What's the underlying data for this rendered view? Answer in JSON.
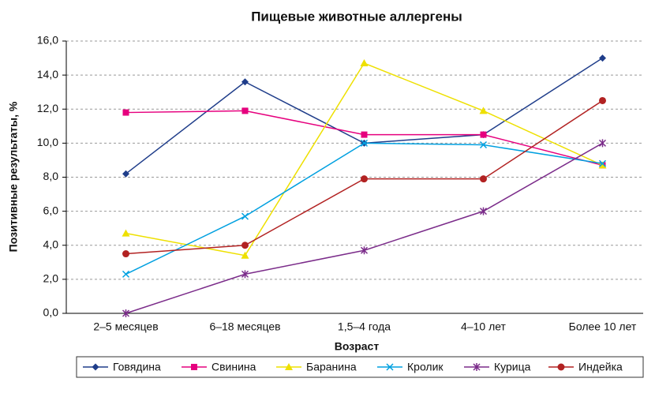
{
  "chart_data": {
    "type": "line",
    "title": "Пищевые животные аллергены",
    "x_label": "Возраст",
    "y_label": "Позитивные результаты, %",
    "categories": [
      "2–5 месяцев",
      "6–18 месяцев",
      "1,5–4 года",
      "4–10 лет",
      "Более 10 лет"
    ],
    "ylim": [
      0,
      16
    ],
    "yticks": [
      {
        "value": 0,
        "label": "0,0"
      },
      {
        "value": 2,
        "label": "2,0"
      },
      {
        "value": 4,
        "label": "4,0"
      },
      {
        "value": 6,
        "label": "6,0"
      },
      {
        "value": 8,
        "label": "8,0"
      },
      {
        "value": 10,
        "label": "10,0"
      },
      {
        "value": 12,
        "label": "12,0"
      },
      {
        "value": 14,
        "label": "14,0"
      },
      {
        "value": 16,
        "label": "16,0"
      }
    ],
    "grid": true,
    "legend": "bottom",
    "series": [
      {
        "name": "Говядина",
        "color": "#1f3d8a",
        "marker": "diamond",
        "values": [
          8.2,
          13.6,
          10.0,
          10.5,
          15.0
        ]
      },
      {
        "name": "Свинина",
        "color": "#e6007e",
        "marker": "square",
        "values": [
          11.8,
          11.9,
          10.5,
          10.5,
          8.7
        ]
      },
      {
        "name": "Баранина",
        "color": "#eee000",
        "marker": "triangle",
        "values": [
          4.7,
          3.4,
          14.7,
          11.9,
          8.7
        ]
      },
      {
        "name": "Кролик",
        "color": "#00a0e0",
        "marker": "x",
        "values": [
          2.3,
          5.7,
          10.0,
          9.9,
          8.8
        ]
      },
      {
        "name": "Курица",
        "color": "#7b2c8a",
        "marker": "asterisk",
        "values": [
          0.0,
          2.3,
          3.7,
          6.0,
          10.0
        ]
      },
      {
        "name": "Индейка",
        "color": "#b22222",
        "marker": "circle",
        "values": [
          3.5,
          4.0,
          7.9,
          7.9,
          12.5
        ]
      }
    ]
  }
}
